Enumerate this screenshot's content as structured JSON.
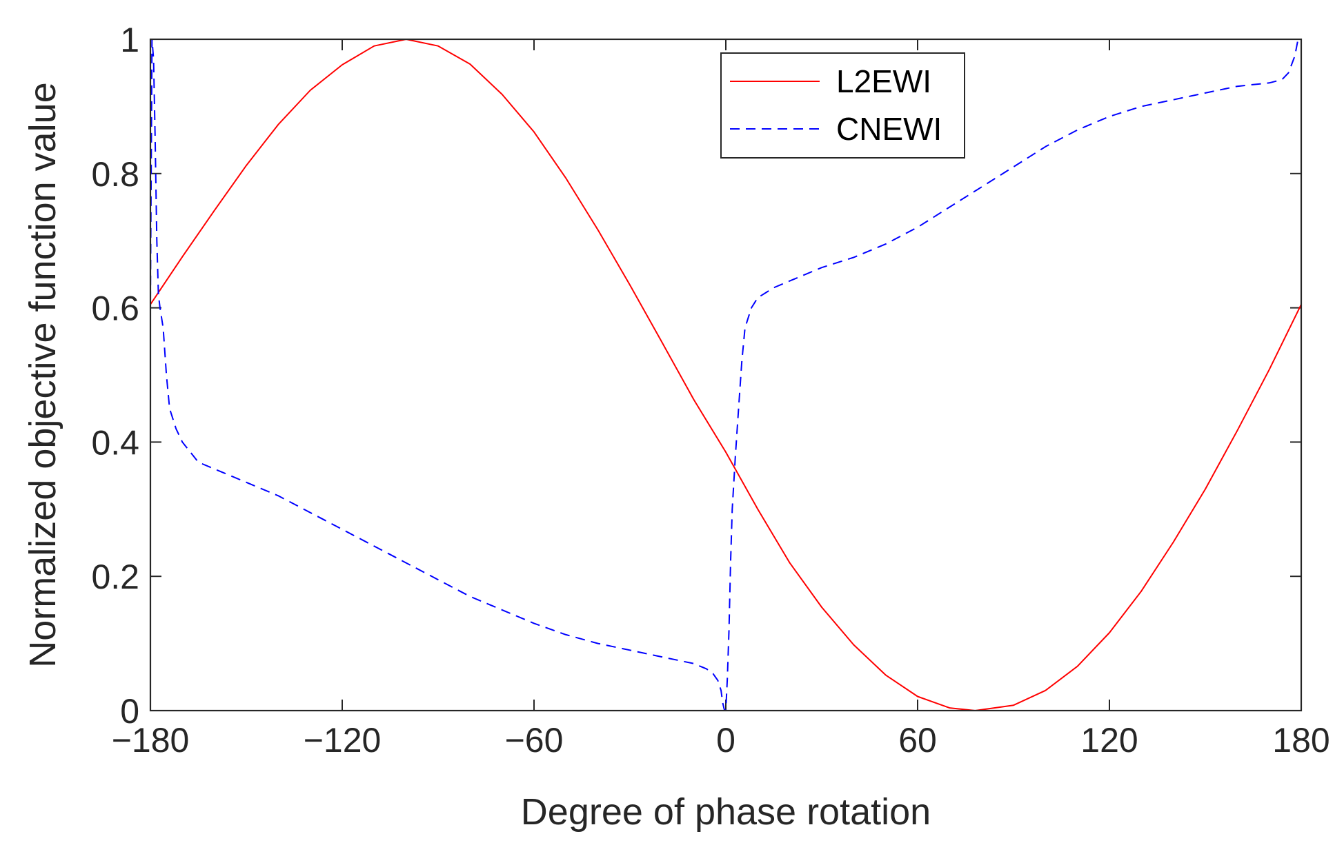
{
  "chart_data": {
    "type": "line",
    "title": "",
    "xlabel": "Degree of phase rotation",
    "ylabel": "Normalized objective function value",
    "xlim": [
      -180,
      180
    ],
    "ylim": [
      0,
      1
    ],
    "xticks": [
      -180,
      -120,
      -60,
      0,
      60,
      120,
      180
    ],
    "xtick_labels": [
      "−180",
      "−120",
      "−60",
      "0",
      "60",
      "120",
      "180"
    ],
    "yticks": [
      0,
      0.2,
      0.4,
      0.6,
      0.8,
      1
    ],
    "ytick_labels": [
      "0",
      "0.2",
      "0.4",
      "0.6",
      "0.8",
      "1"
    ],
    "legend_position": "top-right",
    "series": [
      {
        "name": "L2EWI",
        "color": "#ff0000",
        "style": "solid",
        "x": [
          -180,
          -170,
          -160,
          -150,
          -140,
          -130,
          -120,
          -110,
          -100,
          -90,
          -80,
          -70,
          -60,
          -50,
          -40,
          -30,
          -20,
          -10,
          0,
          10,
          20,
          30,
          40,
          50,
          60,
          70,
          78,
          90,
          100,
          110,
          120,
          130,
          140,
          150,
          160,
          170,
          180
        ],
        "y": [
          0.605,
          0.676,
          0.745,
          0.812,
          0.873,
          0.924,
          0.962,
          0.99,
          1.0,
          0.99,
          0.963,
          0.918,
          0.862,
          0.793,
          0.716,
          0.634,
          0.549,
          0.463,
          0.385,
          0.3,
          0.22,
          0.154,
          0.098,
          0.053,
          0.021,
          0.004,
          0.0,
          0.008,
          0.03,
          0.066,
          0.116,
          0.178,
          0.251,
          0.33,
          0.417,
          0.508,
          0.605
        ]
      },
      {
        "name": "CNEWI",
        "color": "#0000ff",
        "style": "dashed",
        "x": [
          -180,
          -179.5,
          -179,
          -178.5,
          -178,
          -177.5,
          -177,
          -176,
          -175,
          -174,
          -172,
          -170,
          -165,
          -160,
          -150,
          -140,
          -130,
          -120,
          -110,
          -100,
          -90,
          -80,
          -70,
          -60,
          -50,
          -40,
          -30,
          -20,
          -10,
          -6,
          -4,
          -2.5,
          -1.5,
          -1,
          -0.5,
          0,
          0.5,
          1,
          1.5,
          2,
          3,
          4,
          5,
          6,
          8,
          10,
          15,
          20,
          30,
          40,
          50,
          60,
          70,
          80,
          90,
          100,
          110,
          120,
          130,
          140,
          150,
          160,
          170,
          174,
          176,
          178,
          179,
          180
        ],
        "y": [
          0.61,
          1.0,
          0.97,
          0.85,
          0.7,
          0.62,
          0.6,
          0.57,
          0.5,
          0.45,
          0.42,
          0.4,
          0.37,
          0.36,
          0.34,
          0.32,
          0.295,
          0.27,
          0.245,
          0.22,
          0.195,
          0.17,
          0.15,
          0.13,
          0.113,
          0.1,
          0.09,
          0.08,
          0.07,
          0.062,
          0.055,
          0.045,
          0.03,
          0.012,
          0.002,
          0.0,
          0.05,
          0.12,
          0.22,
          0.3,
          0.38,
          0.45,
          0.52,
          0.57,
          0.6,
          0.615,
          0.63,
          0.64,
          0.66,
          0.675,
          0.695,
          0.72,
          0.75,
          0.78,
          0.81,
          0.84,
          0.865,
          0.885,
          0.9,
          0.91,
          0.92,
          0.93,
          0.935,
          0.94,
          0.95,
          0.975,
          1.0,
          1.0
        ]
      }
    ]
  }
}
